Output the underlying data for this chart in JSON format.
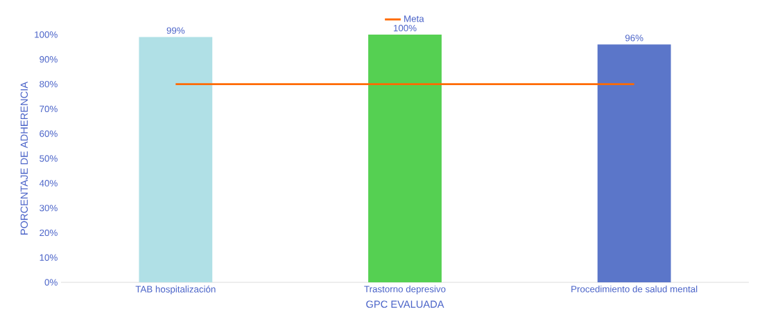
{
  "chart_data": {
    "type": "bar",
    "xlabel": "GPC EVALUADA",
    "ylabel": "PORCENTAJE DE ADHERENCIA",
    "categories": [
      "TAB hospitalización",
      "Trastorno depresivo",
      "Procedimiento de salud mental"
    ],
    "series": [
      {
        "colors": [
          "#b0e0e6",
          "#55d052",
          "#5b76c9"
        ],
        "values": [
          99,
          100,
          96
        ],
        "value_labels": [
          "99%",
          "100%",
          "96%"
        ]
      },
      {
        "type": "line",
        "name": "Meta",
        "color": "#ff6a00",
        "values": [
          80,
          80,
          80
        ]
      }
    ],
    "ylim": [
      0,
      100
    ],
    "yticks": [
      {
        "value": 0,
        "label": "0%"
      },
      {
        "value": 10,
        "label": "10%"
      },
      {
        "value": 20,
        "label": "20%"
      },
      {
        "value": 30,
        "label": "30%"
      },
      {
        "value": 40,
        "label": "40%"
      },
      {
        "value": 50,
        "label": "50%"
      },
      {
        "value": 60,
        "label": "60%"
      },
      {
        "value": 70,
        "label": "70%"
      },
      {
        "value": 80,
        "label": "80%"
      },
      {
        "value": 90,
        "label": "90%"
      },
      {
        "value": 100,
        "label": "100%"
      }
    ],
    "legend": "top",
    "grid": false
  }
}
